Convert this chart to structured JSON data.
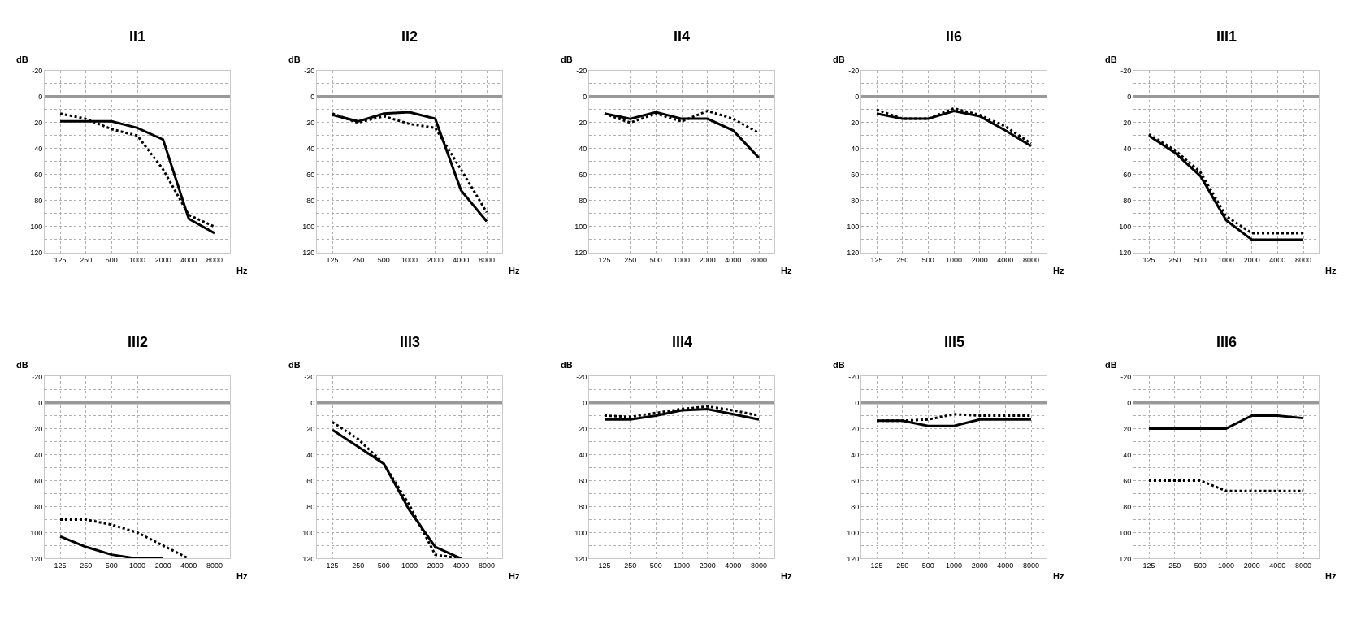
{
  "chart_data": [
    {
      "type": "line",
      "title": "II1",
      "xlabel": "Hz",
      "ylabel": "dB",
      "categories": [
        "125",
        "250",
        "500",
        "1000",
        "2000",
        "4000",
        "8000"
      ],
      "series": [
        {
          "color": "#000000",
          "line_style": "solid",
          "values": [
            19,
            19,
            19,
            24,
            33,
            94,
            105
          ]
        },
        {
          "color": "#000000",
          "line_style": "dotted",
          "values": [
            13,
            17,
            25,
            30,
            56,
            91,
            100
          ]
        }
      ],
      "ylim": [
        120,
        -20
      ],
      "yticks": [
        -20,
        {
          "value": -10,
          "label": null
        },
        0,
        {
          "value": 10,
          "label": null
        },
        20,
        {
          "value": 30,
          "label": null
        },
        40,
        {
          "value": 50,
          "label": null
        },
        60,
        {
          "value": 70,
          "label": null
        },
        80,
        {
          "value": 90,
          "label": null
        },
        100,
        {
          "value": 110,
          "label": null
        },
        120
      ],
      "grid": true,
      "ref_lines": [
        {
          "axis": "y",
          "value": 0,
          "color": "#999999"
        }
      ]
    },
    {
      "type": "line",
      "title": "II2",
      "xlabel": "Hz",
      "ylabel": "dB",
      "categories": [
        "125",
        "250",
        "500",
        "1000",
        "2000",
        "4000",
        "8000"
      ],
      "series": [
        {
          "color": "#000000",
          "line_style": "solid",
          "values": [
            14,
            19,
            13,
            12,
            17,
            72,
            96
          ]
        },
        {
          "color": "#000000",
          "line_style": "dotted",
          "values": [
            13,
            20,
            15,
            21,
            24,
            56,
            89
          ]
        }
      ],
      "ylim": [
        120,
        -20
      ],
      "yticks": [
        -20,
        {
          "value": -10,
          "label": null
        },
        0,
        {
          "value": 10,
          "label": null
        },
        20,
        {
          "value": 30,
          "label": null
        },
        40,
        {
          "value": 50,
          "label": null
        },
        60,
        {
          "value": 70,
          "label": null
        },
        80,
        {
          "value": 90,
          "label": null
        },
        100,
        {
          "value": 110,
          "label": null
        },
        120
      ],
      "grid": true,
      "ref_lines": [
        {
          "axis": "y",
          "value": 0,
          "color": "#999999"
        }
      ]
    },
    {
      "type": "line",
      "title": "II4",
      "xlabel": "Hz",
      "ylabel": "dB",
      "categories": [
        "125",
        "250",
        "500",
        "1000",
        "2000",
        "4000",
        "8000"
      ],
      "series": [
        {
          "color": "#000000",
          "line_style": "solid",
          "values": [
            13,
            17,
            12,
            17,
            17,
            26,
            47
          ]
        },
        {
          "color": "#000000",
          "line_style": "dotted",
          "values": [
            13,
            20,
            13,
            19,
            11,
            17,
            28
          ]
        }
      ],
      "ylim": [
        120,
        -20
      ],
      "yticks": [
        -20,
        {
          "value": -10,
          "label": null
        },
        0,
        {
          "value": 10,
          "label": null
        },
        20,
        {
          "value": 30,
          "label": null
        },
        40,
        {
          "value": 50,
          "label": null
        },
        60,
        {
          "value": 70,
          "label": null
        },
        80,
        {
          "value": 90,
          "label": null
        },
        100,
        {
          "value": 110,
          "label": null
        },
        120
      ],
      "grid": true,
      "ref_lines": [
        {
          "axis": "y",
          "value": 0,
          "color": "#999999"
        }
      ]
    },
    {
      "type": "line",
      "title": "II6",
      "xlabel": "Hz",
      "ylabel": "dB",
      "categories": [
        "125",
        "250",
        "500",
        "1000",
        "2000",
        "4000",
        "8000"
      ],
      "series": [
        {
          "color": "#000000",
          "line_style": "solid",
          "values": [
            13,
            17,
            17,
            11,
            15,
            26,
            38
          ]
        },
        {
          "color": "#000000",
          "line_style": "dotted",
          "values": [
            10,
            17,
            17,
            9,
            14,
            23,
            36
          ]
        }
      ],
      "ylim": [
        120,
        -20
      ],
      "yticks": [
        -20,
        {
          "value": -10,
          "label": null
        },
        0,
        {
          "value": 10,
          "label": null
        },
        20,
        {
          "value": 30,
          "label": null
        },
        40,
        {
          "value": 50,
          "label": null
        },
        60,
        {
          "value": 70,
          "label": null
        },
        80,
        {
          "value": 90,
          "label": null
        },
        100,
        {
          "value": 110,
          "label": null
        },
        120
      ],
      "grid": true,
      "ref_lines": [
        {
          "axis": "y",
          "value": 0,
          "color": "#999999"
        }
      ]
    },
    {
      "type": "line",
      "title": "III1",
      "xlabel": "Hz",
      "ylabel": "dB",
      "categories": [
        "125",
        "250",
        "500",
        "1000",
        "2000",
        "4000",
        "8000"
      ],
      "series": [
        {
          "color": "#000000",
          "line_style": "solid",
          "values": [
            30,
            43,
            61,
            95,
            110,
            110,
            110
          ]
        },
        {
          "color": "#000000",
          "line_style": "dotted",
          "values": [
            29,
            41,
            58,
            92,
            105,
            105,
            105
          ]
        }
      ],
      "ylim": [
        120,
        -20
      ],
      "yticks": [
        -20,
        {
          "value": -10,
          "label": null
        },
        0,
        {
          "value": 10,
          "label": null
        },
        20,
        {
          "value": 30,
          "label": null
        },
        40,
        {
          "value": 50,
          "label": null
        },
        60,
        {
          "value": 70,
          "label": null
        },
        80,
        {
          "value": 90,
          "label": null
        },
        100,
        {
          "value": 110,
          "label": null
        },
        120
      ],
      "grid": true,
      "ref_lines": [
        {
          "axis": "y",
          "value": 0,
          "color": "#999999"
        }
      ]
    },
    {
      "type": "line",
      "title": "III2",
      "xlabel": "Hz",
      "ylabel": "dB",
      "categories": [
        "125",
        "250",
        "500",
        "1000",
        "2000",
        "4000",
        "8000"
      ],
      "series": [
        {
          "color": "#000000",
          "line_style": "solid",
          "values": [
            103,
            111,
            117,
            120,
            120,
            null,
            null
          ]
        },
        {
          "color": "#000000",
          "line_style": "dotted",
          "values": [
            90,
            90,
            94,
            100,
            110,
            120,
            null
          ]
        }
      ],
      "ylim": [
        120,
        -20
      ],
      "yticks": [
        -20,
        {
          "value": -10,
          "label": null
        },
        0,
        {
          "value": 10,
          "label": null
        },
        20,
        {
          "value": 30,
          "label": null
        },
        40,
        {
          "value": 50,
          "label": null
        },
        60,
        {
          "value": 70,
          "label": null
        },
        80,
        {
          "value": 90,
          "label": null
        },
        100,
        {
          "value": 110,
          "label": null
        },
        120
      ],
      "grid": true,
      "ref_lines": [
        {
          "axis": "y",
          "value": 0,
          "color": "#999999"
        }
      ]
    },
    {
      "type": "line",
      "title": "III3",
      "xlabel": "Hz",
      "ylabel": "dB",
      "categories": [
        "125",
        "250",
        "500",
        "1000",
        "2000",
        "4000",
        "8000"
      ],
      "series": [
        {
          "color": "#000000",
          "line_style": "solid",
          "values": [
            21,
            34,
            47,
            83,
            111,
            120,
            null
          ]
        },
        {
          "color": "#000000",
          "line_style": "dotted",
          "values": [
            15,
            28,
            47,
            79,
            117,
            120,
            null
          ]
        }
      ],
      "ylim": [
        120,
        -20
      ],
      "yticks": [
        -20,
        {
          "value": -10,
          "label": null
        },
        0,
        {
          "value": 10,
          "label": null
        },
        20,
        {
          "value": 30,
          "label": null
        },
        40,
        {
          "value": 50,
          "label": null
        },
        60,
        {
          "value": 70,
          "label": null
        },
        80,
        {
          "value": 90,
          "label": null
        },
        100,
        {
          "value": 110,
          "label": null
        },
        120
      ],
      "grid": true,
      "ref_lines": [
        {
          "axis": "y",
          "value": 0,
          "color": "#999999"
        }
      ]
    },
    {
      "type": "line",
      "title": "III4",
      "xlabel": "Hz",
      "ylabel": "dB",
      "categories": [
        "125",
        "250",
        "500",
        "1000",
        "2000",
        "4000",
        "8000"
      ],
      "series": [
        {
          "color": "#000000",
          "line_style": "solid",
          "values": [
            13,
            13,
            10,
            6,
            5,
            9,
            13
          ]
        },
        {
          "color": "#000000",
          "line_style": "dotted",
          "values": [
            10,
            11,
            8,
            5,
            3,
            6,
            10
          ]
        }
      ],
      "ylim": [
        120,
        -20
      ],
      "yticks": [
        -20,
        {
          "value": -10,
          "label": null
        },
        0,
        {
          "value": 10,
          "label": null
        },
        20,
        {
          "value": 30,
          "label": null
        },
        40,
        {
          "value": 50,
          "label": null
        },
        60,
        {
          "value": 70,
          "label": null
        },
        80,
        {
          "value": 90,
          "label": null
        },
        100,
        {
          "value": 110,
          "label": null
        },
        120
      ],
      "grid": true,
      "ref_lines": [
        {
          "axis": "y",
          "value": 0,
          "color": "#999999"
        }
      ]
    },
    {
      "type": "line",
      "title": "III5",
      "xlabel": "Hz",
      "ylabel": "dB",
      "categories": [
        "125",
        "250",
        "500",
        "1000",
        "2000",
        "4000",
        "8000"
      ],
      "series": [
        {
          "color": "#000000",
          "line_style": "solid",
          "values": [
            14,
            14,
            18,
            18,
            13,
            13,
            13
          ]
        },
        {
          "color": "#000000",
          "line_style": "dotted",
          "values": [
            14,
            14,
            13,
            9,
            10,
            10,
            10
          ]
        }
      ],
      "ylim": [
        120,
        -20
      ],
      "yticks": [
        -20,
        {
          "value": -10,
          "label": null
        },
        0,
        {
          "value": 10,
          "label": null
        },
        20,
        {
          "value": 30,
          "label": null
        },
        40,
        {
          "value": 50,
          "label": null
        },
        60,
        {
          "value": 70,
          "label": null
        },
        80,
        {
          "value": 90,
          "label": null
        },
        100,
        {
          "value": 110,
          "label": null
        },
        120
      ],
      "grid": true,
      "ref_lines": [
        {
          "axis": "y",
          "value": 0,
          "color": "#999999"
        }
      ]
    },
    {
      "type": "line",
      "title": "III6",
      "xlabel": "Hz",
      "ylabel": "dB",
      "categories": [
        "125",
        "250",
        "500",
        "1000",
        "2000",
        "4000",
        "8000"
      ],
      "series": [
        {
          "color": "#000000",
          "line_style": "solid",
          "values": [
            20,
            20,
            20,
            20,
            10,
            10,
            12
          ]
        },
        {
          "color": "#000000",
          "line_style": "dotted",
          "values": [
            60,
            60,
            60,
            68,
            68,
            68,
            68
          ]
        }
      ],
      "ylim": [
        120,
        -20
      ],
      "yticks": [
        -20,
        {
          "value": -10,
          "label": null
        },
        0,
        {
          "value": 10,
          "label": null
        },
        20,
        {
          "value": 30,
          "label": null
        },
        40,
        {
          "value": 50,
          "label": null
        },
        60,
        {
          "value": 70,
          "label": null
        },
        80,
        {
          "value": 90,
          "label": null
        },
        100,
        {
          "value": 110,
          "label": null
        },
        120
      ],
      "grid": true,
      "ref_lines": [
        {
          "axis": "y",
          "value": 0,
          "color": "#999999"
        }
      ]
    }
  ]
}
